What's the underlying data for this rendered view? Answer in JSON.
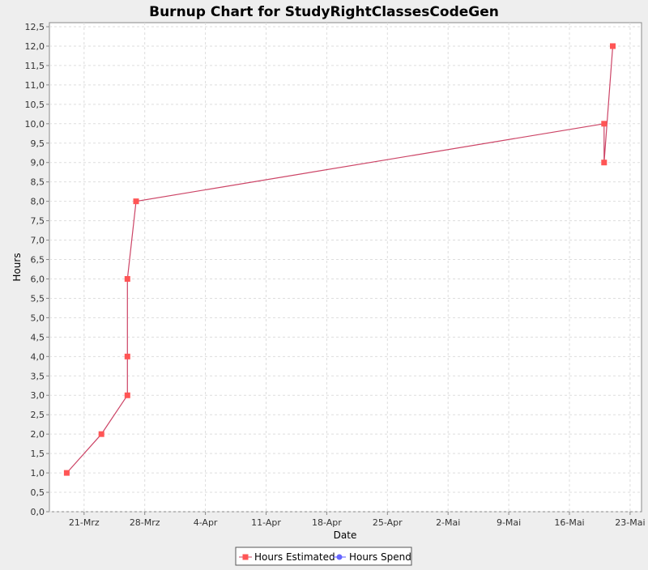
{
  "chart_data": {
    "type": "line",
    "title": "Burnup Chart for StudyRightClassesCodeGen",
    "xlabel": "Date",
    "ylabel": "Hours",
    "x_axis_type": "date",
    "xlim": [
      "2013-03-17",
      "2013-05-24"
    ],
    "ylim": [
      0,
      12.5
    ],
    "y_ticks": [
      {
        "value": 0.0,
        "label": "0,0"
      },
      {
        "value": 0.5,
        "label": "0,5"
      },
      {
        "value": 1.0,
        "label": "1,0"
      },
      {
        "value": 1.5,
        "label": "1,5"
      },
      {
        "value": 2.0,
        "label": "2,0"
      },
      {
        "value": 2.5,
        "label": "2,5"
      },
      {
        "value": 3.0,
        "label": "3,0"
      },
      {
        "value": 3.5,
        "label": "3,5"
      },
      {
        "value": 4.0,
        "label": "4,0"
      },
      {
        "value": 4.5,
        "label": "4,5"
      },
      {
        "value": 5.0,
        "label": "5,0"
      },
      {
        "value": 5.5,
        "label": "5,5"
      },
      {
        "value": 6.0,
        "label": "6,0"
      },
      {
        "value": 6.5,
        "label": "6,5"
      },
      {
        "value": 7.0,
        "label": "7,0"
      },
      {
        "value": 7.5,
        "label": "7,5"
      },
      {
        "value": 8.0,
        "label": "8,0"
      },
      {
        "value": 8.5,
        "label": "8,5"
      },
      {
        "value": 9.0,
        "label": "9,0"
      },
      {
        "value": 9.5,
        "label": "9,5"
      },
      {
        "value": 10.0,
        "label": "10,0"
      },
      {
        "value": 10.5,
        "label": "10,5"
      },
      {
        "value": 11.0,
        "label": "11,0"
      },
      {
        "value": 11.5,
        "label": "11,5"
      },
      {
        "value": 12.0,
        "label": "12,0"
      },
      {
        "value": 12.5,
        "label": "12,5"
      }
    ],
    "x_ticks": [
      {
        "value": "2013-03-21",
        "label": "21-Mrz"
      },
      {
        "value": "2013-03-28",
        "label": "28-Mrz"
      },
      {
        "value": "2013-04-04",
        "label": "4-Apr"
      },
      {
        "value": "2013-04-11",
        "label": "11-Apr"
      },
      {
        "value": "2013-04-18",
        "label": "18-Apr"
      },
      {
        "value": "2013-04-25",
        "label": "25-Apr"
      },
      {
        "value": "2013-05-02",
        "label": "2-Mai"
      },
      {
        "value": "2013-05-09",
        "label": "9-Mai"
      },
      {
        "value": "2013-05-16",
        "label": "16-Mai"
      },
      {
        "value": "2013-05-23",
        "label": "23-Mai"
      }
    ],
    "grid": true,
    "legend_position": "bottom",
    "series": [
      {
        "name": "Hours Estimated",
        "color": "#ff5555",
        "line_color": "#cc4466",
        "marker": "square",
        "points": [
          {
            "x": "2013-03-19",
            "y": 1
          },
          {
            "x": "2013-03-23",
            "y": 2
          },
          {
            "x": "2013-03-26",
            "y": 3
          },
          {
            "x": "2013-03-26",
            "y": 4
          },
          {
            "x": "2013-03-26",
            "y": 6
          },
          {
            "x": "2013-03-27",
            "y": 8
          },
          {
            "x": "2013-05-20",
            "y": 10
          },
          {
            "x": "2013-05-20",
            "y": 9
          },
          {
            "x": "2013-05-21",
            "y": 12
          }
        ]
      },
      {
        "name": "Hours Spend",
        "color": "#5555ff",
        "marker": "circle",
        "points": []
      }
    ]
  }
}
